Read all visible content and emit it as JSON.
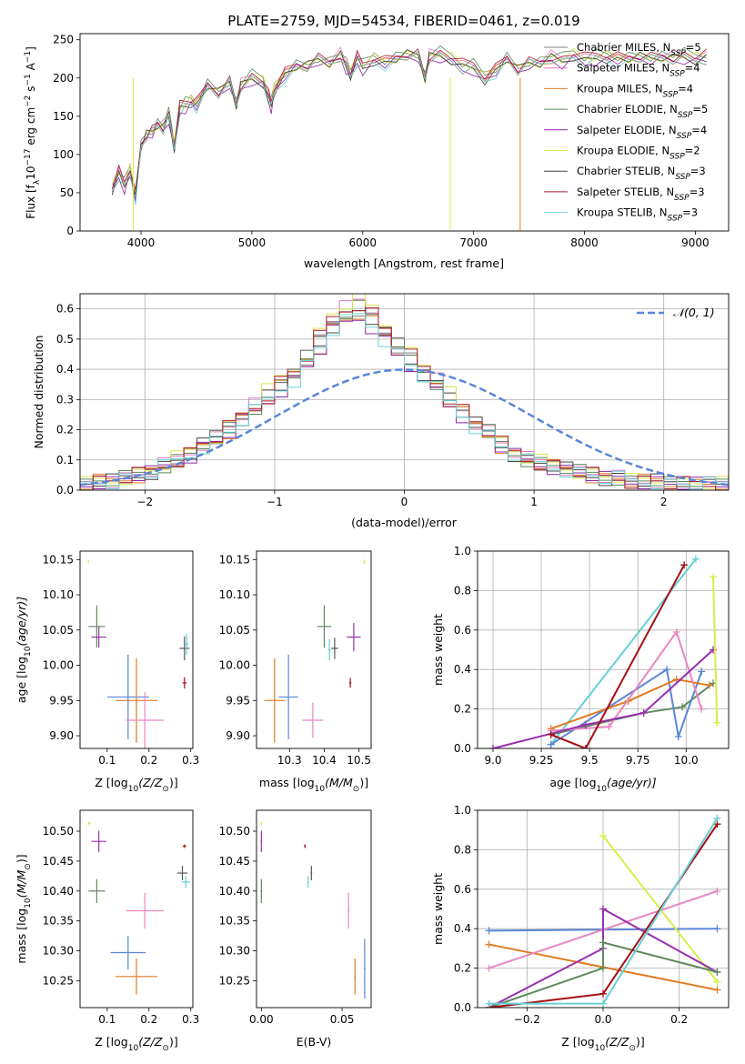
{
  "figure_title": "PLATE=2759, MJD=54534, FIBERID=0461, z=0.019",
  "colors": {
    "chabrier_miles": "#7f7f7f",
    "salpeter_miles": "#e377c2",
    "kroupa_miles": "#d9822b",
    "chabrier_elodie": "#5a8a5a",
    "salpeter_elodie": "#8e24aa",
    "kroupa_elodie": "#d9e84a",
    "chabrier_stelib": "#444444",
    "salpeter_stelib": "#b2182b",
    "kroupa_stelib": "#6dd3d6",
    "model_blue": "#5b86d6",
    "model_orange": "#e07b22",
    "model_pink": "#e887c0",
    "model_green": "#5f8a5f",
    "model_purple": "#9a2fb0",
    "model_yellow": "#d6ee4a",
    "model_red": "#a50f15",
    "model_cyan": "#66d0d5",
    "model_darkgray": "#555555"
  },
  "chart_data": [
    {
      "type": "line",
      "xlabel": "wavelength [Angstrom, rest frame]",
      "ylabel_main": "Flux [f",
      "ylabel_sub": "λ",
      "ylabel_mid": "10",
      "ylabel_exp": "−17",
      "ylabel_units": " erg cm",
      "ylabel_exp2": "−2",
      "ylabel_s": " s",
      "ylabel_exp3": "−1",
      "ylabel_a": " A",
      "ylabel_exp4": "−1",
      "ylabel_end": "]",
      "xlim": [
        3450,
        9300
      ],
      "ylim": [
        0,
        258
      ],
      "xticks": [
        "4000",
        "5000",
        "6000",
        "7000",
        "8000",
        "9000"
      ],
      "xtick_values": [
        4000,
        5000,
        6000,
        7000,
        8000,
        9000
      ],
      "yticks": [
        "0",
        "50",
        "100",
        "150",
        "200",
        "250"
      ],
      "ytick_values": [
        0,
        50,
        100,
        150,
        200,
        250
      ],
      "legend_position": "right",
      "spectrum_x": [
        3740,
        3800,
        3850,
        3900,
        3950,
        4000,
        4050,
        4100,
        4150,
        4200,
        4250,
        4300,
        4350,
        4400,
        4450,
        4500,
        4600,
        4700,
        4800,
        4860,
        4900,
        5000,
        5100,
        5150,
        5175,
        5200,
        5300,
        5400,
        5500,
        5600,
        5700,
        5800,
        5850,
        5890,
        5950,
        6000,
        6100,
        6200,
        6300,
        6400,
        6500,
        6563,
        6600,
        6700,
        6800,
        6900,
        7000,
        7100,
        7200,
        7300,
        7400,
        7500,
        7600,
        7700,
        7800,
        7900,
        8000,
        8100,
        8200,
        8300,
        8400,
        8500,
        8600,
        8700,
        8800,
        8900,
        9000,
        9100
      ],
      "spectrum_y": [
        55,
        75,
        60,
        80,
        45,
        110,
        125,
        130,
        140,
        135,
        150,
        110,
        160,
        165,
        170,
        165,
        190,
        180,
        195,
        165,
        190,
        200,
        195,
        175,
        165,
        185,
        205,
        215,
        215,
        225,
        220,
        230,
        215,
        205,
        225,
        215,
        225,
        220,
        225,
        230,
        230,
        200,
        228,
        230,
        225,
        215,
        215,
        200,
        210,
        225,
        210,
        220,
        220,
        227,
        222,
        230,
        223,
        228,
        228,
        225,
        225,
        227,
        226,
        228,
        226,
        228,
        225,
        227
      ],
      "legend": [
        {
          "label": "Chabrier MILES, N",
          "sub": "SSP",
          "count": "=5",
          "color": "#7f7f7f"
        },
        {
          "label": "Salpeter MILES, N",
          "sub": "SSP",
          "count": "=4",
          "color": "#e377c2"
        },
        {
          "label": "Kroupa MILES, N",
          "sub": "SSP",
          "count": "=4",
          "color": "#d9822b"
        },
        {
          "label": "Chabrier ELODIE, N",
          "sub": "SSP",
          "count": "=5",
          "color": "#5a8a5a"
        },
        {
          "label": "Salpeter ELODIE, N",
          "sub": "SSP",
          "count": "=4",
          "color": "#8e24aa"
        },
        {
          "label": "Kroupa ELODIE, N",
          "sub": "SSP",
          "count": "=2",
          "color": "#d9e84a"
        },
        {
          "label": "Chabrier STELIB, N",
          "sub": "SSP",
          "count": "=3",
          "color": "#444444"
        },
        {
          "label": "Salpeter STELIB, N",
          "sub": "SSP",
          "count": "=3",
          "color": "#b2182b"
        },
        {
          "label": "Kroupa STELIB, N",
          "sub": "SSP",
          "count": "=3",
          "color": "#6dd3d6"
        }
      ]
    },
    {
      "type": "histogram",
      "xlabel": "(data-model)/error",
      "ylabel": "Normed distribution",
      "xlim": [
        -2.5,
        2.5
      ],
      "ylim": [
        0,
        0.65
      ],
      "xticks": [
        "−2",
        "−1",
        "0",
        "1",
        "2"
      ],
      "xtick_values": [
        -2,
        -1,
        0,
        1,
        2
      ],
      "yticks": [
        "0.0",
        "0.1",
        "0.2",
        "0.3",
        "0.4",
        "0.5",
        "0.6"
      ],
      "ytick_values": [
        0,
        0.1,
        0.2,
        0.3,
        0.4,
        0.5,
        0.6
      ],
      "grid": true,
      "legend_label": "𝒩(0, 1)",
      "legend_position": "top-right",
      "bin_width": 0.1,
      "histogram_values": [
        0.02,
        0.03,
        0.03,
        0.04,
        0.05,
        0.06,
        0.08,
        0.1,
        0.12,
        0.15,
        0.17,
        0.2,
        0.24,
        0.27,
        0.31,
        0.35,
        0.38,
        0.43,
        0.49,
        0.55,
        0.58,
        0.6,
        0.57,
        0.52,
        0.47,
        0.43,
        0.39,
        0.35,
        0.3,
        0.26,
        0.22,
        0.19,
        0.15,
        0.12,
        0.1,
        0.09,
        0.08,
        0.07,
        0.06,
        0.05,
        0.04,
        0.04,
        0.03,
        0.03,
        0.03,
        0.02,
        0.02,
        0.02,
        0.02,
        0.02
      ]
    },
    {
      "type": "scatter",
      "panel": "Z-age",
      "xlabel": "Z [log",
      "xlabel_sub": "10",
      "xlabel_end": "(Z/Z",
      "xlabel_sun": "⊙",
      "xlabel_close": ")]",
      "ylabel": "age  [log",
      "ylabel_sub": "10",
      "ylabel_end": "(age/yr)]",
      "xlim": [
        0.035,
        0.305
      ],
      "ylim": [
        9.882,
        10.162
      ],
      "xticks": [
        "0.1",
        "0.2",
        "0.3"
      ],
      "xtick_values": [
        0.1,
        0.2,
        0.3
      ],
      "yticks": [
        "9.90",
        "9.95",
        "10.00",
        "10.05",
        "10.10",
        "10.15"
      ],
      "ytick_values": [
        9.9,
        9.95,
        10.0,
        10.05,
        10.1,
        10.15
      ],
      "points": [
        {
          "x": 0.055,
          "y": 10.147,
          "xerr": 0.002,
          "yerr": 0.002,
          "color": "#d6ee4a"
        },
        {
          "x": 0.075,
          "y": 10.055,
          "xerr": 0.02,
          "yerr": 0.03,
          "color": "#5f8a5f"
        },
        {
          "x": 0.08,
          "y": 10.04,
          "xerr": 0.018,
          "yerr": 0.015,
          "color": "#9a2fb0"
        },
        {
          "x": 0.15,
          "y": 9.955,
          "xerr": 0.05,
          "yerr": 0.06,
          "color": "#5b86d6"
        },
        {
          "x": 0.17,
          "y": 9.95,
          "xerr": 0.05,
          "yerr": 0.06,
          "color": "#e07b22"
        },
        {
          "x": 0.19,
          "y": 9.922,
          "xerr": 0.045,
          "yerr": 0.04,
          "color": "#e887c0"
        },
        {
          "x": 0.285,
          "y": 10.024,
          "xerr": 0.012,
          "yerr": 0.017,
          "color": "#555555"
        },
        {
          "x": 0.29,
          "y": 10.03,
          "xerr": 0.004,
          "yerr": 0.015,
          "color": "#66d0d5"
        },
        {
          "x": 0.285,
          "y": 9.975,
          "xerr": 0.005,
          "yerr": 0.008,
          "color": "#a50f15"
        }
      ]
    },
    {
      "type": "scatter",
      "panel": "mass-age",
      "xlabel": "mass [log",
      "xlabel_sub": "10",
      "xlabel_end": "(M/M",
      "xlabel_sun": "⊙",
      "xlabel_close": ")]",
      "xlim": [
        10.205,
        10.535
      ],
      "ylim": [
        9.882,
        10.162
      ],
      "xticks": [
        "10.3",
        "10.4",
        "10.5"
      ],
      "xtick_values": [
        10.3,
        10.4,
        10.5
      ],
      "yticks": [
        "9.90",
        "9.95",
        "10.00",
        "10.05",
        "10.10",
        "10.15"
      ],
      "ytick_values": [
        9.9,
        9.95,
        10.0,
        10.05,
        10.1,
        10.15
      ],
      "points": [
        {
          "x": 10.515,
          "y": 10.147,
          "xerr": 0.003,
          "yerr": 0.003,
          "color": "#d6ee4a"
        },
        {
          "x": 10.4,
          "y": 10.055,
          "xerr": 0.02,
          "yerr": 0.03,
          "color": "#5f8a5f"
        },
        {
          "x": 10.485,
          "y": 10.04,
          "xerr": 0.02,
          "yerr": 0.02,
          "color": "#9a2fb0"
        },
        {
          "x": 10.297,
          "y": 9.955,
          "xerr": 0.028,
          "yerr": 0.06,
          "color": "#5b86d6"
        },
        {
          "x": 10.257,
          "y": 9.95,
          "xerr": 0.03,
          "yerr": 0.06,
          "color": "#e07b22"
        },
        {
          "x": 10.367,
          "y": 9.922,
          "xerr": 0.03,
          "yerr": 0.025,
          "color": "#e887c0"
        },
        {
          "x": 10.43,
          "y": 10.024,
          "xerr": 0.01,
          "yerr": 0.015,
          "color": "#555555"
        },
        {
          "x": 10.415,
          "y": 10.022,
          "xerr": 0.004,
          "yerr": 0.015,
          "color": "#66d0d5"
        },
        {
          "x": 10.475,
          "y": 9.975,
          "xerr": 0.003,
          "yerr": 0.007,
          "color": "#a50f15"
        }
      ]
    },
    {
      "type": "line",
      "panel": "age-weight",
      "xlabel": "age  [log",
      "xlabel_sub": "10",
      "xlabel_end": "(age/yr)]",
      "ylabel": "mass weight",
      "xlim": [
        8.92,
        10.22
      ],
      "ylim": [
        0,
        1.0
      ],
      "xticks": [
        "9.0",
        "9.25",
        "9.5",
        "9.75",
        "10.0"
      ],
      "xtick_values": [
        9.0,
        9.25,
        9.5,
        9.75,
        10.0
      ],
      "yticks": [
        "0.0",
        "0.2",
        "0.4",
        "0.6",
        "0.8",
        "1.0"
      ],
      "ytick_values": [
        0,
        0.2,
        0.4,
        0.6,
        0.8,
        1.0
      ],
      "grid": true,
      "series": [
        {
          "color": "#66d0d5",
          "x": [
            9.3,
            10.05
          ],
          "y": [
            0.02,
            0.96
          ]
        },
        {
          "color": "#5f8a5f",
          "x": [
            9.3,
            9.78,
            9.98,
            10.14
          ],
          "y": [
            0.07,
            0.18,
            0.21,
            0.33
          ]
        },
        {
          "color": "#5b86d6",
          "x": [
            9.3,
            9.9,
            9.96,
            10.08
          ],
          "y": [
            0.02,
            0.4,
            0.06,
            0.39
          ]
        },
        {
          "color": "#e07b22",
          "x": [
            9.3,
            9.7,
            9.95,
            10.12
          ],
          "y": [
            0.1,
            0.24,
            0.35,
            0.32
          ]
        },
        {
          "color": "#e887c0",
          "x": [
            9.3,
            9.6,
            9.95,
            10.08
          ],
          "y": [
            0.09,
            0.11,
            0.59,
            0.2
          ]
        },
        {
          "color": "#9a2fb0",
          "x": [
            9.0,
            9.48,
            9.78,
            10.14
          ],
          "y": [
            0.0,
            0.12,
            0.18,
            0.5
          ]
        },
        {
          "color": "#a50f15",
          "x": [
            9.3,
            9.48,
            9.99
          ],
          "y": [
            0.07,
            0.0,
            0.93
          ]
        },
        {
          "color": "#d6ee4a",
          "x": [
            10.14,
            10.16
          ],
          "y": [
            0.87,
            0.13
          ]
        }
      ]
    },
    {
      "type": "scatter",
      "panel": "Z-mass",
      "xlabel": "Z [log",
      "xlabel_sub": "10",
      "xlabel_end": "(Z/Z",
      "xlabel_sun": "⊙",
      "xlabel_close": ")]",
      "ylabel": "mass [log",
      "ylabel_sub": "10",
      "ylabel_end": "(M/M",
      "ylabel_sun": "⊙",
      "ylabel_close": ")]",
      "xlim": [
        0.035,
        0.305
      ],
      "ylim": [
        10.205,
        10.535
      ],
      "xticks": [
        "0.1",
        "0.2",
        "0.3"
      ],
      "xtick_values": [
        0.1,
        0.2,
        0.3
      ],
      "yticks": [
        "10.25",
        "10.30",
        "10.35",
        "10.40",
        "10.45",
        "10.50"
      ],
      "ytick_values": [
        10.25,
        10.3,
        10.35,
        10.4,
        10.45,
        10.5
      ],
      "points": [
        {
          "x": 0.057,
          "y": 10.513,
          "xerr": 0.003,
          "yerr": 0.003,
          "color": "#d6ee4a"
        },
        {
          "x": 0.08,
          "y": 10.483,
          "xerr": 0.018,
          "yerr": 0.018,
          "color": "#9a2fb0"
        },
        {
          "x": 0.075,
          "y": 10.4,
          "xerr": 0.02,
          "yerr": 0.02,
          "color": "#5f8a5f"
        },
        {
          "x": 0.19,
          "y": 10.367,
          "xerr": 0.045,
          "yerr": 0.03,
          "color": "#e887c0"
        },
        {
          "x": 0.15,
          "y": 10.297,
          "xerr": 0.042,
          "yerr": 0.028,
          "color": "#5b86d6"
        },
        {
          "x": 0.17,
          "y": 10.257,
          "xerr": 0.05,
          "yerr": 0.03,
          "color": "#e07b22"
        },
        {
          "x": 0.285,
          "y": 10.475,
          "xerr": 0.004,
          "yerr": 0.003,
          "color": "#a50f15"
        },
        {
          "x": 0.28,
          "y": 10.43,
          "xerr": 0.012,
          "yerr": 0.012,
          "color": "#555555"
        },
        {
          "x": 0.288,
          "y": 10.415,
          "xerr": 0.01,
          "yerr": 0.01,
          "color": "#66d0d5"
        }
      ]
    },
    {
      "type": "scatter",
      "panel": "EBV-mass",
      "xlabel": "E(B-V)",
      "xlim": [
        -0.003,
        0.068
      ],
      "ylim": [
        10.205,
        10.535
      ],
      "xticks": [
        "0.00",
        "0.05"
      ],
      "xtick_values": [
        0.0,
        0.05
      ],
      "yticks": [
        "10.25",
        "10.30",
        "10.35",
        "10.40",
        "10.45",
        "10.50"
      ],
      "ytick_values": [
        10.25,
        10.3,
        10.35,
        10.4,
        10.45,
        10.5
      ],
      "points": [
        {
          "x": 0.0,
          "y": 10.513,
          "xerr": 0.0005,
          "yerr": 0.003,
          "color": "#d6ee4a"
        },
        {
          "x": 0.0,
          "y": 10.483,
          "xerr": 0.0005,
          "yerr": 0.018,
          "color": "#9a2fb0"
        },
        {
          "x": 0.0,
          "y": 10.4,
          "xerr": 0.0005,
          "yerr": 0.02,
          "color": "#5f8a5f"
        },
        {
          "x": 0.027,
          "y": 10.475,
          "xerr": 0.0005,
          "yerr": 0.003,
          "color": "#a50f15"
        },
        {
          "x": 0.031,
          "y": 10.43,
          "xerr": 0.0005,
          "yerr": 0.012,
          "color": "#555555"
        },
        {
          "x": 0.029,
          "y": 10.415,
          "xerr": 0.0005,
          "yerr": 0.01,
          "color": "#66d0d5"
        },
        {
          "x": 0.054,
          "y": 10.367,
          "xerr": 0.0005,
          "yerr": 0.03,
          "color": "#e887c0"
        },
        {
          "x": 0.058,
          "y": 10.257,
          "xerr": 0.0005,
          "yerr": 0.03,
          "color": "#e07b22"
        },
        {
          "x": 0.064,
          "y": 10.27,
          "xerr": 0.0005,
          "yerr": 0.05,
          "color": "#5b86d6"
        }
      ]
    },
    {
      "type": "line",
      "panel": "Z-weight",
      "xlabel": "Z [log",
      "xlabel_sub": "10",
      "xlabel_end": "(Z/Z",
      "xlabel_sun": "⊙",
      "xlabel_close": ")]",
      "ylabel": "mass weight",
      "xlim": [
        -0.33,
        0.33
      ],
      "ylim": [
        0,
        1.0
      ],
      "xticks": [
        "−0.2",
        "0.0",
        "0.2"
      ],
      "xtick_values": [
        -0.2,
        0.0,
        0.2
      ],
      "yticks": [
        "0.0",
        "0.2",
        "0.4",
        "0.6",
        "0.8",
        "1.0"
      ],
      "ytick_values": [
        0,
        0.2,
        0.4,
        0.6,
        0.8,
        1.0
      ],
      "grid": true,
      "series": [
        {
          "color": "#5b86d6",
          "x": [
            -0.3,
            0.3
          ],
          "y": [
            0.39,
            0.4
          ]
        },
        {
          "color": "#e07b22",
          "x": [
            -0.3,
            0.3
          ],
          "y": [
            0.32,
            0.09
          ]
        },
        {
          "color": "#e887c0",
          "x": [
            -0.3,
            0.3
          ],
          "y": [
            0.2,
            0.59
          ]
        },
        {
          "color": "#d6ee4a",
          "x": [
            0.0,
            0.3
          ],
          "y": [
            0.87,
            0.13
          ]
        },
        {
          "color": "#9a2fb0",
          "x": [
            -0.3,
            0.0,
            0.0,
            0.3
          ],
          "y": [
            0.0,
            0.3,
            0.5,
            0.18
          ]
        },
        {
          "color": "#5f8a5f",
          "x": [
            -0.3,
            0.0,
            0.0,
            0.3
          ],
          "y": [
            0.0,
            0.2,
            0.33,
            0.18
          ]
        },
        {
          "color": "#a50f15",
          "x": [
            -0.3,
            0.0,
            0.3
          ],
          "y": [
            0.0,
            0.07,
            0.93
          ]
        },
        {
          "color": "#66d0d5",
          "x": [
            -0.3,
            0.0,
            0.3
          ],
          "y": [
            0.02,
            0.02,
            0.96
          ]
        }
      ]
    }
  ]
}
